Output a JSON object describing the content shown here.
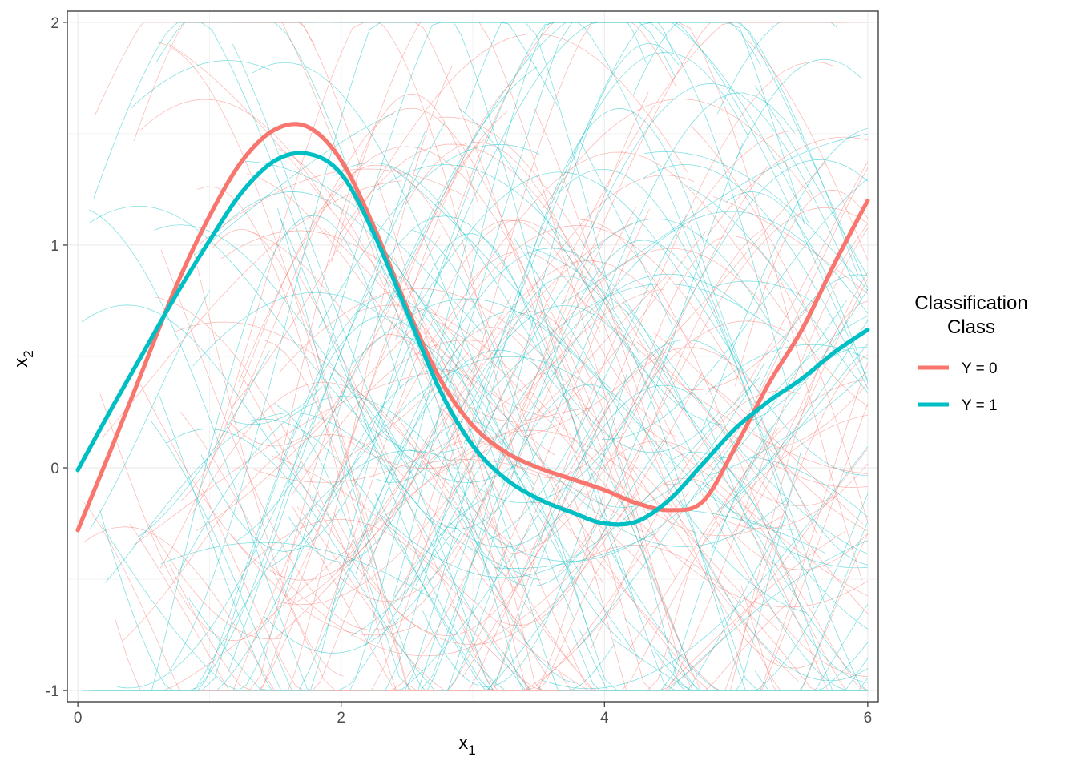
{
  "chart_data": {
    "type": "line",
    "xlabel": "x",
    "xlabel_sub": "1",
    "ylabel": "x",
    "ylabel_sub": "2",
    "xlim": [
      -0.08,
      6.08
    ],
    "ylim": [
      -1.05,
      2.05
    ],
    "x_ticks": [
      0,
      2,
      4,
      6
    ],
    "x_tick_labels": [
      "0",
      "2",
      "4",
      "6"
    ],
    "y_ticks": [
      -1,
      0,
      1,
      2
    ],
    "y_tick_labels": [
      "-1",
      "0",
      "1",
      "2"
    ],
    "grid": true,
    "legend": {
      "title_line1": "Classification",
      "title_line2": "Class",
      "placement": "right",
      "entries": [
        "Y = 0",
        "Y = 1"
      ]
    },
    "colors": {
      "class0": "#F8766D",
      "class1": "#00BFC4"
    },
    "series": [
      {
        "name": "Y = 0",
        "color": "#F8766D",
        "x": [
          0,
          0.25,
          0.5,
          0.75,
          1.0,
          1.25,
          1.5,
          1.75,
          2.0,
          2.25,
          2.5,
          2.75,
          3.0,
          3.25,
          3.5,
          3.75,
          4.0,
          4.25,
          4.5,
          4.75,
          5.0,
          5.25,
          5.5,
          5.75,
          6.0
        ],
        "values": [
          -0.28,
          0.08,
          0.45,
          0.82,
          1.13,
          1.38,
          1.52,
          1.53,
          1.38,
          1.08,
          0.72,
          0.4,
          0.19,
          0.07,
          0.0,
          -0.05,
          -0.1,
          -0.16,
          -0.19,
          -0.15,
          0.1,
          0.38,
          0.62,
          0.92,
          1.2
        ]
      },
      {
        "name": "Y = 1",
        "color": "#00BFC4",
        "x": [
          0,
          0.25,
          0.5,
          0.75,
          1.0,
          1.25,
          1.5,
          1.75,
          2.0,
          2.25,
          2.5,
          2.75,
          3.0,
          3.25,
          3.5,
          3.75,
          4.0,
          4.25,
          4.5,
          4.75,
          5.0,
          5.25,
          5.5,
          5.75,
          6.0
        ],
        "values": [
          -0.01,
          0.26,
          0.52,
          0.78,
          1.02,
          1.24,
          1.38,
          1.41,
          1.32,
          1.05,
          0.7,
          0.35,
          0.1,
          -0.05,
          -0.14,
          -0.2,
          -0.25,
          -0.24,
          -0.14,
          0.02,
          0.18,
          0.3,
          0.4,
          0.52,
          0.62
        ]
      }
    ]
  }
}
